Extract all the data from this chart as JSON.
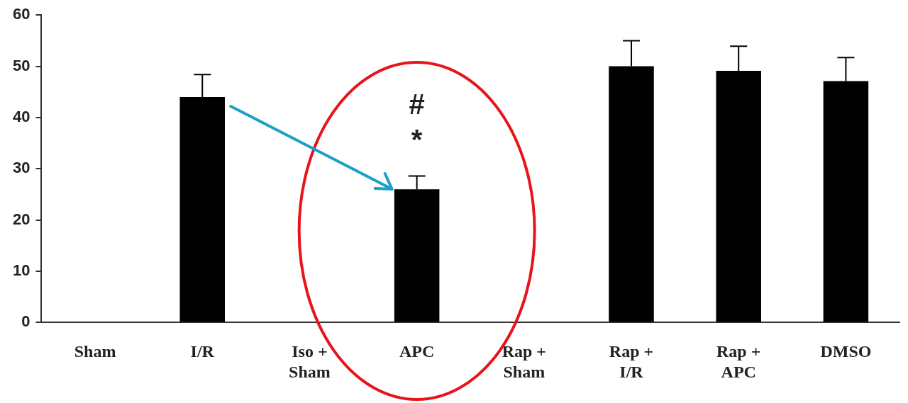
{
  "chart_data": {
    "type": "bar",
    "categories": [
      "Sham",
      "I/R",
      "Iso +\nSham",
      "APC",
      "Rap +\nSham",
      "Rap +\nI/R",
      "Rap +\nAPC",
      "DMSO"
    ],
    "values": [
      0,
      44,
      0,
      26,
      0,
      50,
      49.1,
      47.1
    ],
    "errors": [
      null,
      [
        44,
        48.4
      ],
      null,
      [
        26,
        28.6
      ],
      null,
      [
        50,
        55
      ],
      [
        49.1,
        53.9
      ],
      [
        47.1,
        51.7
      ]
    ],
    "color": "#000000",
    "ylim": [
      0,
      60
    ],
    "yticks": [
      0,
      10,
      20,
      30,
      40,
      50,
      60
    ],
    "grid": false,
    "legend": false,
    "annotations": [
      "*",
      "#"
    ]
  }
}
